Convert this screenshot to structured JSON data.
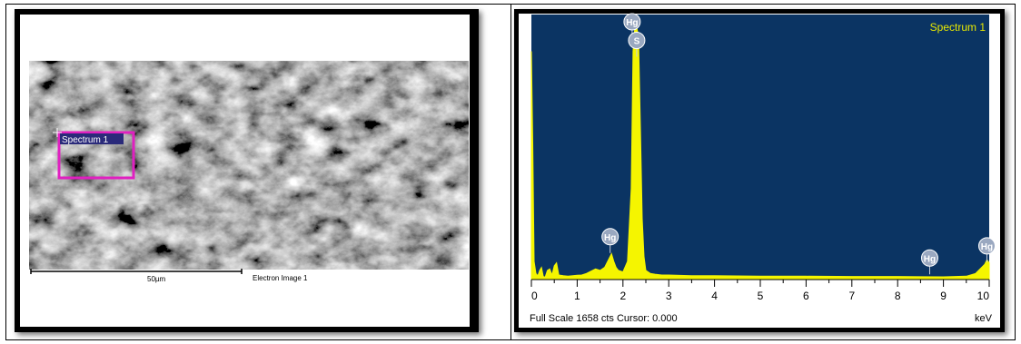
{
  "sem": {
    "spectrum_box_label": "Spectrum 1",
    "scale_bar_label": "50µm",
    "image_label": "Electron Image 1"
  },
  "eds": {
    "title": "Spectrum 1",
    "footer": "Full Scale 1658 cts Cursor: 0.000",
    "unit": "keV"
  },
  "colors": {
    "plot_background": "#0b3463",
    "spectrum_fill": "#f5f500",
    "marker_fill": "#9aa8c0",
    "roi_box": "#e020c0"
  },
  "chart_data": {
    "type": "area",
    "title": "Spectrum 1",
    "xlabel": "keV",
    "xlim": [
      0,
      10
    ],
    "ylim": [
      0,
      1658
    ],
    "x_ticks": [
      "0",
      "1",
      "2",
      "3",
      "4",
      "5",
      "6",
      "7",
      "8",
      "9",
      "10"
    ],
    "series": [
      {
        "x": [
          0.0,
          0.03,
          0.06,
          0.1,
          0.14,
          0.18,
          0.22,
          0.26,
          0.3,
          0.35,
          0.4,
          0.45,
          0.5,
          0.55,
          0.6,
          0.7,
          0.8,
          0.9,
          1.0,
          1.1,
          1.2,
          1.3,
          1.4,
          1.5,
          1.6,
          1.7,
          1.75,
          1.8,
          1.85,
          1.9,
          2.0,
          2.1,
          2.18,
          2.22,
          2.26,
          2.3,
          2.34,
          2.38,
          2.42,
          2.46,
          2.5,
          2.6,
          2.7,
          2.85,
          3.0,
          3.5,
          4.0,
          5.0,
          6.0,
          7.0,
          8.0,
          9.0,
          9.5,
          9.7,
          9.8,
          9.9,
          9.95,
          10.0
        ],
        "y": [
          1500,
          900,
          120,
          40,
          25,
          60,
          80,
          20,
          15,
          60,
          70,
          30,
          90,
          110,
          30,
          25,
          22,
          25,
          28,
          30,
          40,
          55,
          70,
          60,
          80,
          140,
          170,
          120,
          80,
          60,
          50,
          120,
          600,
          1500,
          1658,
          1658,
          1600,
          1000,
          400,
          150,
          60,
          40,
          35,
          30,
          30,
          25,
          25,
          22,
          22,
          20,
          20,
          18,
          22,
          40,
          70,
          100,
          130,
          110
        ]
      }
    ],
    "element_markers": [
      {
        "label": "Hg",
        "x": 2.2,
        "y": 1658
      },
      {
        "label": "S",
        "x": 2.3,
        "y": 1500
      },
      {
        "label": "Hg",
        "x": 1.72,
        "y": 210
      },
      {
        "label": "Hg",
        "x": 8.7,
        "y": 70
      },
      {
        "label": "Hg",
        "x": 9.95,
        "y": 150
      }
    ]
  }
}
